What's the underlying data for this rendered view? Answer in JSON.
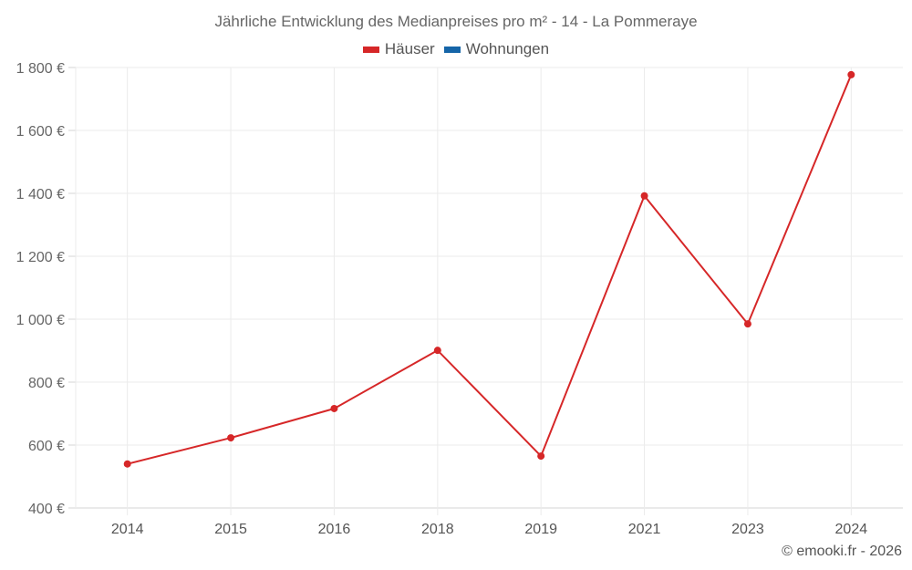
{
  "chart_data": {
    "type": "line",
    "title": "Jährliche Entwicklung des Medianpreises pro m² - 14 - La Pommeraye",
    "xlabel": "",
    "ylabel": "",
    "categories": [
      "2014",
      "2015",
      "2016",
      "2018",
      "2019",
      "2021",
      "2023",
      "2024"
    ],
    "series": [
      {
        "name": "Häuser",
        "color": "#d62728",
        "values": [
          540,
          623,
          716,
          901,
          565,
          1392,
          985,
          1777
        ]
      },
      {
        "name": "Wohnungen",
        "color": "#1565a8",
        "values": []
      }
    ],
    "ylim": [
      400,
      1800
    ],
    "yticks": [
      400,
      600,
      800,
      1000,
      1200,
      1400,
      1600,
      1800
    ],
    "ytick_labels": [
      "400 €",
      "600 €",
      "800 €",
      "1 000 €",
      "1 200 €",
      "1 400 €",
      "1 600 €",
      "1 800 €"
    ],
    "grid": true,
    "legend_position": "top"
  },
  "header": {
    "title": "Jährliche Entwicklung des Medianpreises pro m² - 14 - La Pommeraye"
  },
  "legend": {
    "items": [
      {
        "label": "Häuser",
        "color": "#d62728"
      },
      {
        "label": "Wohnungen",
        "color": "#1565a8"
      }
    ]
  },
  "footer": {
    "credit": "© emooki.fr - 2026"
  }
}
